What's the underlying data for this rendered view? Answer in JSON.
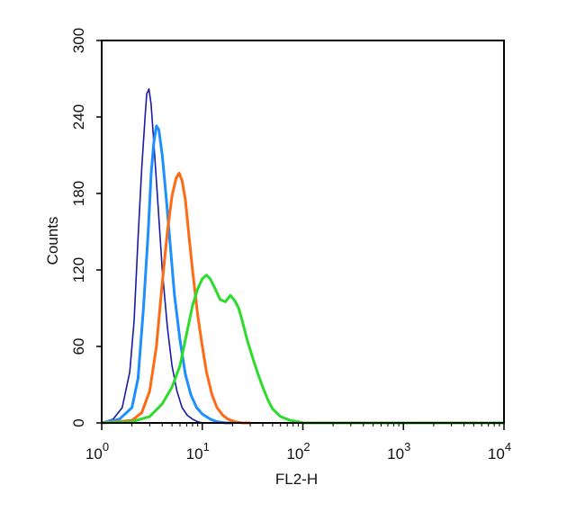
{
  "chart_data": {
    "type": "line",
    "xlabel": "FL2-H",
    "ylabel": "Counts",
    "xscale": "log",
    "xlim": [
      1,
      10000
    ],
    "ylim": [
      0,
      300
    ],
    "x_ticks": [
      {
        "base": "10",
        "exp": "0"
      },
      {
        "base": "10",
        "exp": "1"
      },
      {
        "base": "10",
        "exp": "2"
      },
      {
        "base": "10",
        "exp": "3"
      },
      {
        "base": "10",
        "exp": "4"
      }
    ],
    "y_ticks": [
      0,
      60,
      120,
      180,
      240,
      300
    ],
    "series": [
      {
        "color": "#1a1aa6",
        "x": [
          1.0,
          1.3,
          1.6,
          1.9,
          2.1,
          2.3,
          2.5,
          2.7,
          2.8,
          2.95,
          3.1,
          3.3,
          3.6,
          4.0,
          4.5,
          5.0,
          5.6,
          6.3,
          7.1,
          8.0,
          9.0,
          10.0,
          12.0
        ],
        "values": [
          0,
          3,
          12,
          40,
          80,
          145,
          200,
          240,
          258,
          262,
          250,
          220,
          175,
          120,
          75,
          45,
          25,
          12,
          6,
          3,
          1,
          0,
          0
        ]
      },
      {
        "color": "#1e8fff",
        "x": [
          1.0,
          1.5,
          2.0,
          2.3,
          2.6,
          2.9,
          3.1,
          3.3,
          3.5,
          3.7,
          4.0,
          4.4,
          4.8,
          5.3,
          6.0,
          6.8,
          7.7,
          8.8,
          10.0,
          12.0,
          14.0,
          17.0,
          20.0
        ],
        "values": [
          0,
          3,
          12,
          35,
          90,
          150,
          195,
          220,
          233,
          230,
          210,
          175,
          140,
          100,
          65,
          38,
          22,
          12,
          7,
          3,
          1,
          0,
          0
        ]
      },
      {
        "color": "#ff6a14",
        "x": [
          1.0,
          2.0,
          2.5,
          3.0,
          3.5,
          4.0,
          4.5,
          5.0,
          5.5,
          5.9,
          6.3,
          6.8,
          7.3,
          8.0,
          9.0,
          10.0,
          11.0,
          12.5,
          14.0,
          16.0,
          18.0,
          21.0,
          25.0,
          30.0
        ],
        "values": [
          0,
          2,
          8,
          25,
          60,
          110,
          150,
          178,
          192,
          196,
          190,
          175,
          150,
          120,
          85,
          60,
          40,
          22,
          12,
          6,
          3,
          1,
          0,
          0
        ]
      },
      {
        "color": "#2cdc2c",
        "x": [
          1.0,
          2.0,
          3.0,
          4.0,
          5.0,
          6.0,
          7.0,
          8.0,
          9.0,
          10.0,
          11.0,
          12.0,
          13.5,
          15.0,
          17.0,
          19.0,
          21.0,
          23.0,
          25.0,
          28.0,
          32.0,
          36.0,
          40.0,
          45.0,
          50.0,
          60.0,
          75.0,
          90.0,
          100.0,
          200.0,
          1000.0,
          10000.0
        ],
        "values": [
          0,
          1,
          5,
          15,
          28,
          45,
          70,
          92,
          105,
          113,
          116,
          113,
          105,
          97,
          95,
          100,
          96,
          90,
          80,
          65,
          50,
          38,
          28,
          18,
          11,
          5,
          2,
          1,
          0,
          0,
          0,
          0
        ]
      }
    ]
  }
}
